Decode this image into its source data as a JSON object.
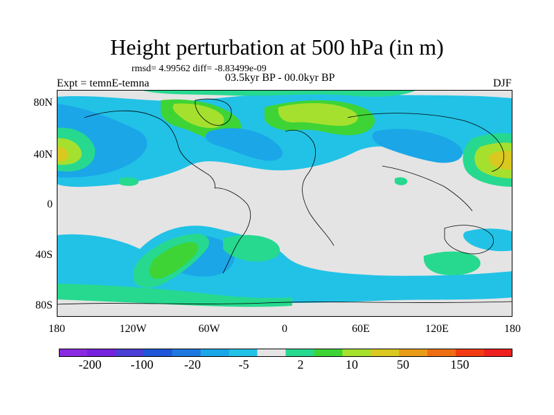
{
  "title": "Height perturbation at 500 hPa (in m)",
  "stats": "rmsd= 4.99562 diff= -8.83499e-09",
  "period": "03.5kyr BP - 00.0kyr BP",
  "experiment": "Expt = temnE-temna",
  "season": "DJF",
  "lat_labels": [
    "80N",
    "40N",
    "0",
    "40S",
    "80S"
  ],
  "lon_labels": [
    "180",
    "120W",
    "60W",
    "0",
    "60E",
    "120E",
    "180"
  ],
  "colorbar": {
    "labels": [
      "-200",
      "-100",
      "-20",
      "-5",
      "2",
      "10",
      "50",
      "150"
    ],
    "colors": [
      "#8a2be2",
      "#7722dd",
      "#4b3fd6",
      "#1f57d8",
      "#1f78e0",
      "#1ba6e8",
      "#22c2e6",
      "#e4e4e4",
      "#26d98f",
      "#3ed435",
      "#a6e02e",
      "#d9c81f",
      "#e89c17",
      "#ee6e14",
      "#f23b12",
      "#ee1f1f"
    ]
  },
  "map_colors": {
    "background": "#e4e4e4",
    "cyan": "#22c2e6",
    "blue": "#1ba6e8",
    "teal": "#26d98f",
    "green": "#3ed435",
    "yellowgreen": "#a6e02e",
    "orange": "#d9c81f",
    "coast": "#000000"
  }
}
